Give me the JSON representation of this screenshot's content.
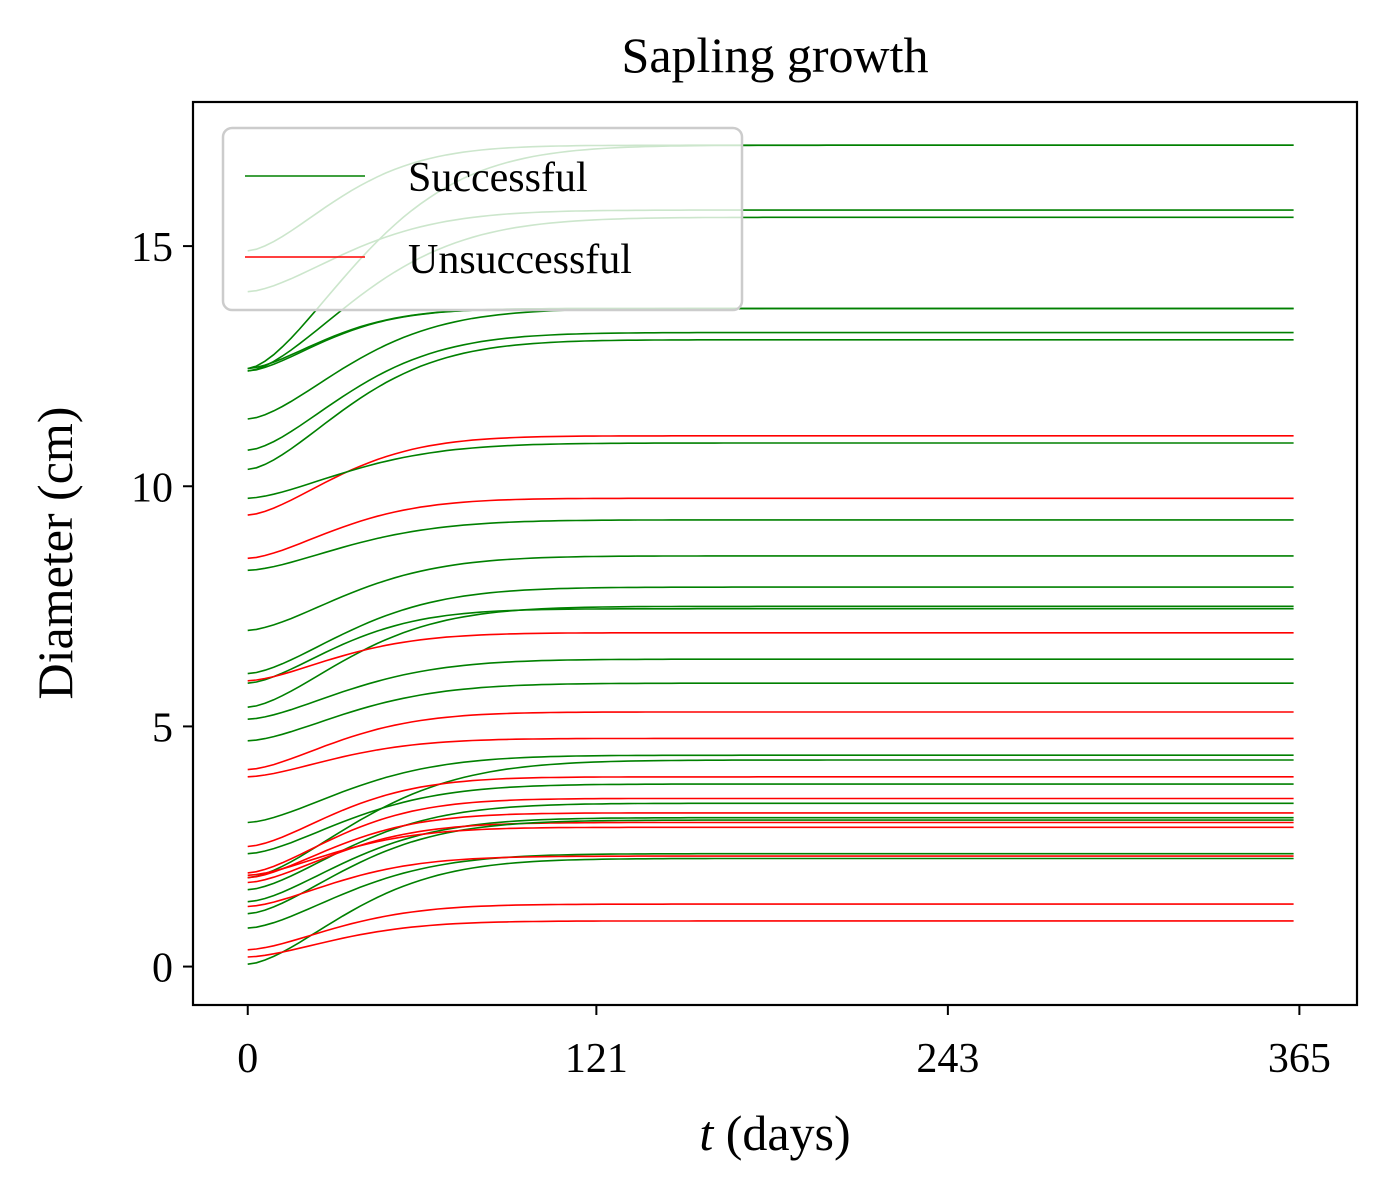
{
  "chart_data": {
    "type": "line",
    "title": "Sapling growth",
    "xlabel_var": "t",
    "xlabel_rest": " (days)",
    "ylabel": "Diameter (cm)",
    "xlim": [
      -19,
      385
    ],
    "ylim": [
      -0.8,
      18.0
    ],
    "xticks": [
      0,
      121,
      243,
      365
    ],
    "xtick_labels": [
      "0",
      "121",
      "243",
      "365"
    ],
    "yticks": [
      0,
      5,
      10,
      15
    ],
    "ytick_labels": [
      "0",
      "5",
      "10",
      "15"
    ],
    "grid": false,
    "legend": {
      "placement": "top-left",
      "entries": [
        {
          "label": "Successful",
          "color": "#008000"
        },
        {
          "label": "Unsuccessful",
          "color": "#ff0000"
        }
      ]
    },
    "series": [
      {
        "group": "Successful",
        "color": "#008000",
        "y0": 14.9,
        "y_end": 17.1,
        "tau_days": 40
      },
      {
        "group": "Successful",
        "color": "#008000",
        "y0": 12.45,
        "y_end": 17.1,
        "tau_days": 50
      },
      {
        "group": "Successful",
        "color": "#008000",
        "y0": 14.05,
        "y_end": 15.75,
        "tau_days": 45
      },
      {
        "group": "Successful",
        "color": "#008000",
        "y0": 12.4,
        "y_end": 15.6,
        "tau_days": 50
      },
      {
        "group": "Successful",
        "color": "#008000",
        "y0": 12.45,
        "y_end": 13.7,
        "tau_days": 35
      },
      {
        "group": "Successful",
        "color": "#008000",
        "y0": 12.4,
        "y_end": 13.7,
        "tau_days": 35
      },
      {
        "group": "Successful",
        "color": "#008000",
        "y0": 11.4,
        "y_end": 13.7,
        "tau_days": 45
      },
      {
        "group": "Successful",
        "color": "#008000",
        "y0": 10.75,
        "y_end": 13.2,
        "tau_days": 45
      },
      {
        "group": "Successful",
        "color": "#008000",
        "y0": 10.35,
        "y_end": 13.05,
        "tau_days": 45
      },
      {
        "group": "Unsuccessful",
        "color": "#ff0000",
        "y0": 9.4,
        "y_end": 11.05,
        "tau_days": 40
      },
      {
        "group": "Successful",
        "color": "#008000",
        "y0": 9.75,
        "y_end": 10.9,
        "tau_days": 45
      },
      {
        "group": "Unsuccessful",
        "color": "#ff0000",
        "y0": 8.5,
        "y_end": 9.75,
        "tau_days": 40
      },
      {
        "group": "Successful",
        "color": "#008000",
        "y0": 8.25,
        "y_end": 9.3,
        "tau_days": 45
      },
      {
        "group": "Successful",
        "color": "#008000",
        "y0": 7.0,
        "y_end": 8.55,
        "tau_days": 45
      },
      {
        "group": "Successful",
        "color": "#008000",
        "y0": 6.1,
        "y_end": 7.9,
        "tau_days": 45
      },
      {
        "group": "Successful",
        "color": "#008000",
        "y0": 5.4,
        "y_end": 7.5,
        "tau_days": 45
      },
      {
        "group": "Successful",
        "color": "#008000",
        "y0": 5.9,
        "y_end": 7.45,
        "tau_days": 40
      },
      {
        "group": "Unsuccessful",
        "color": "#ff0000",
        "y0": 5.95,
        "y_end": 6.95,
        "tau_days": 40
      },
      {
        "group": "Successful",
        "color": "#008000",
        "y0": 5.15,
        "y_end": 6.4,
        "tau_days": 45
      },
      {
        "group": "Successful",
        "color": "#008000",
        "y0": 4.7,
        "y_end": 5.9,
        "tau_days": 45
      },
      {
        "group": "Unsuccessful",
        "color": "#ff0000",
        "y0": 4.1,
        "y_end": 5.3,
        "tau_days": 40
      },
      {
        "group": "Unsuccessful",
        "color": "#ff0000",
        "y0": 3.95,
        "y_end": 4.75,
        "tau_days": 40
      },
      {
        "group": "Successful",
        "color": "#008000",
        "y0": 3.0,
        "y_end": 4.4,
        "tau_days": 45
      },
      {
        "group": "Successful",
        "color": "#008000",
        "y0": 1.85,
        "y_end": 4.3,
        "tau_days": 50
      },
      {
        "group": "Unsuccessful",
        "color": "#ff0000",
        "y0": 2.5,
        "y_end": 3.95,
        "tau_days": 40
      },
      {
        "group": "Successful",
        "color": "#008000",
        "y0": 2.35,
        "y_end": 3.8,
        "tau_days": 45
      },
      {
        "group": "Unsuccessful",
        "color": "#ff0000",
        "y0": 1.95,
        "y_end": 3.5,
        "tau_days": 40
      },
      {
        "group": "Successful",
        "color": "#008000",
        "y0": 1.6,
        "y_end": 3.4,
        "tau_days": 45
      },
      {
        "group": "Unsuccessful",
        "color": "#ff0000",
        "y0": 1.85,
        "y_end": 3.2,
        "tau_days": 40
      },
      {
        "group": "Successful",
        "color": "#008000",
        "y0": 1.35,
        "y_end": 3.1,
        "tau_days": 45
      },
      {
        "group": "Unsuccessful",
        "color": "#ff0000",
        "y0": 1.75,
        "y_end": 3.0,
        "tau_days": 40
      },
      {
        "group": "Successful",
        "color": "#008000",
        "y0": 1.1,
        "y_end": 3.05,
        "tau_days": 45
      },
      {
        "group": "Unsuccessful",
        "color": "#ff0000",
        "y0": 1.9,
        "y_end": 2.9,
        "tau_days": 40
      },
      {
        "group": "Successful",
        "color": "#008000",
        "y0": 0.8,
        "y_end": 2.35,
        "tau_days": 45
      },
      {
        "group": "Unsuccessful",
        "color": "#ff0000",
        "y0": 1.25,
        "y_end": 2.3,
        "tau_days": 40
      },
      {
        "group": "Successful",
        "color": "#008000",
        "y0": 0.05,
        "y_end": 2.25,
        "tau_days": 45
      },
      {
        "group": "Unsuccessful",
        "color": "#ff0000",
        "y0": 0.35,
        "y_end": 1.3,
        "tau_days": 40
      },
      {
        "group": "Unsuccessful",
        "color": "#ff0000",
        "y0": 0.2,
        "y_end": 0.95,
        "tau_days": 40
      }
    ]
  }
}
